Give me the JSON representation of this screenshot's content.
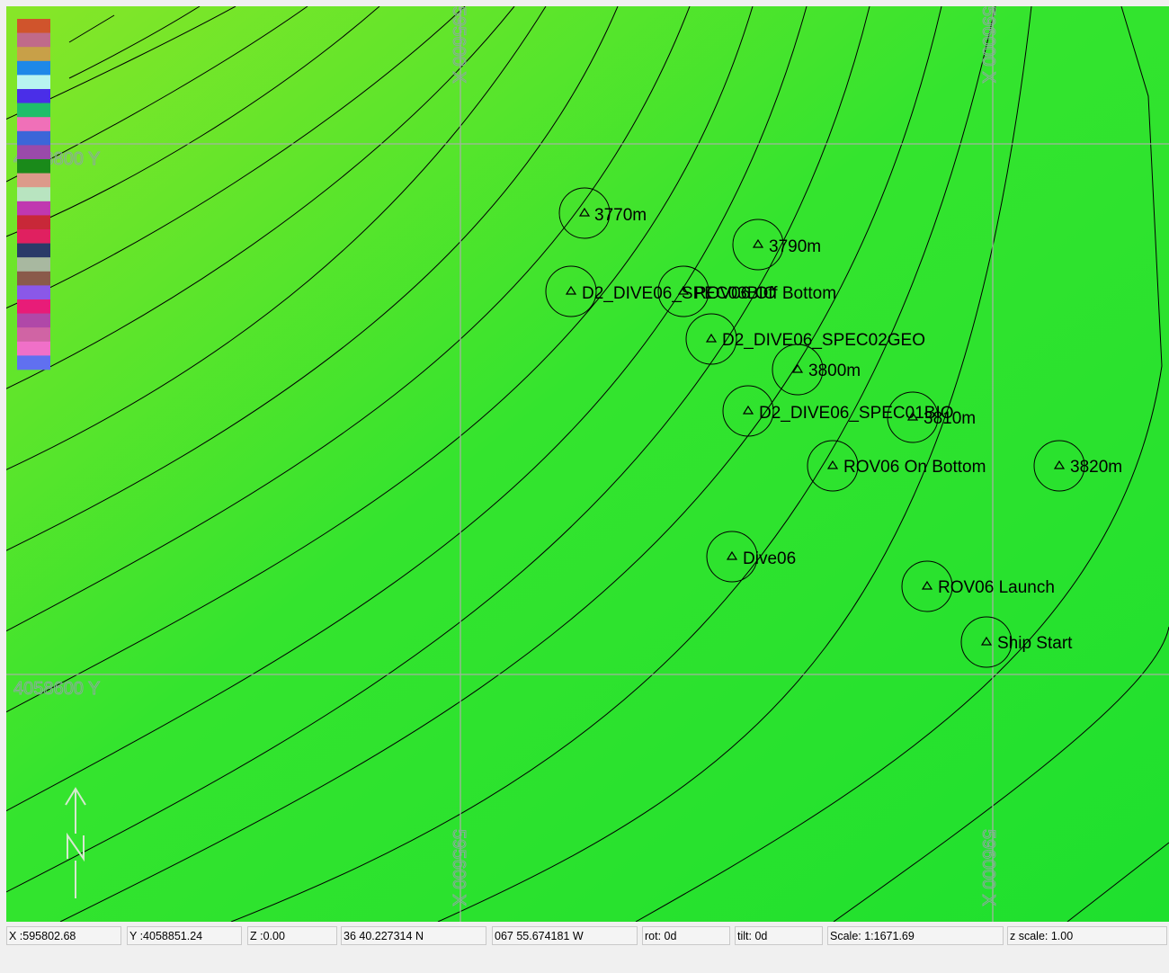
{
  "map": {
    "grid_labels": {
      "x_top_left": "595600 X",
      "x_top_right": "596000 X",
      "x_bottom_left": "595600 X",
      "x_bottom_right": "596000 X",
      "y_upper": "4058800 Y",
      "y_lower": "4058600 Y"
    },
    "waypoints": [
      {
        "label": "3770m"
      },
      {
        "label": "3790m"
      },
      {
        "label": "D2_DIVE06_SPEC03BIO"
      },
      {
        "label": "ROV06 Off Bottom"
      },
      {
        "label": "D2_DIVE06_SPEC02GEO"
      },
      {
        "label": "3800m"
      },
      {
        "label": "D2_DIVE06_SPEC01BIO"
      },
      {
        "label": "3810m"
      },
      {
        "label": "ROV06 On Bottom"
      },
      {
        "label": "3820m"
      },
      {
        "label": "Dive06"
      },
      {
        "label": "ROV06 Launch"
      },
      {
        "label": "Ship Start"
      }
    ],
    "north_arrow_icon": "north-arrow-icon",
    "legend_colors": [
      "#d0542c",
      "#c06a8a",
      "#c8a048",
      "#1e88e8",
      "#b8f4f0",
      "#4a2ee8",
      "#1ebe6a",
      "#f070b8",
      "#3c66d8",
      "#9a4aaa",
      "#1a8a1a",
      "#dc9a8a",
      "#b8e4c0",
      "#c038b0",
      "#c82838",
      "#e02060",
      "#2a3a68",
      "#a8b8a0",
      "#8a5a4a",
      "#8a58e8",
      "#e81c78",
      "#b048a8",
      "#d064a4",
      "#f070c8",
      "#6070f0"
    ]
  },
  "status": {
    "x": "X :595802.68",
    "y": "Y :4058851.24",
    "z": "Z :0.00",
    "lat": "36 40.227314 N",
    "lon": "067 55.674181 W",
    "rot": "rot:  0d",
    "tilt": "tilt:  0d",
    "scale": "Scale: 1:1671.69",
    "zscale": "z scale: 1.00"
  }
}
